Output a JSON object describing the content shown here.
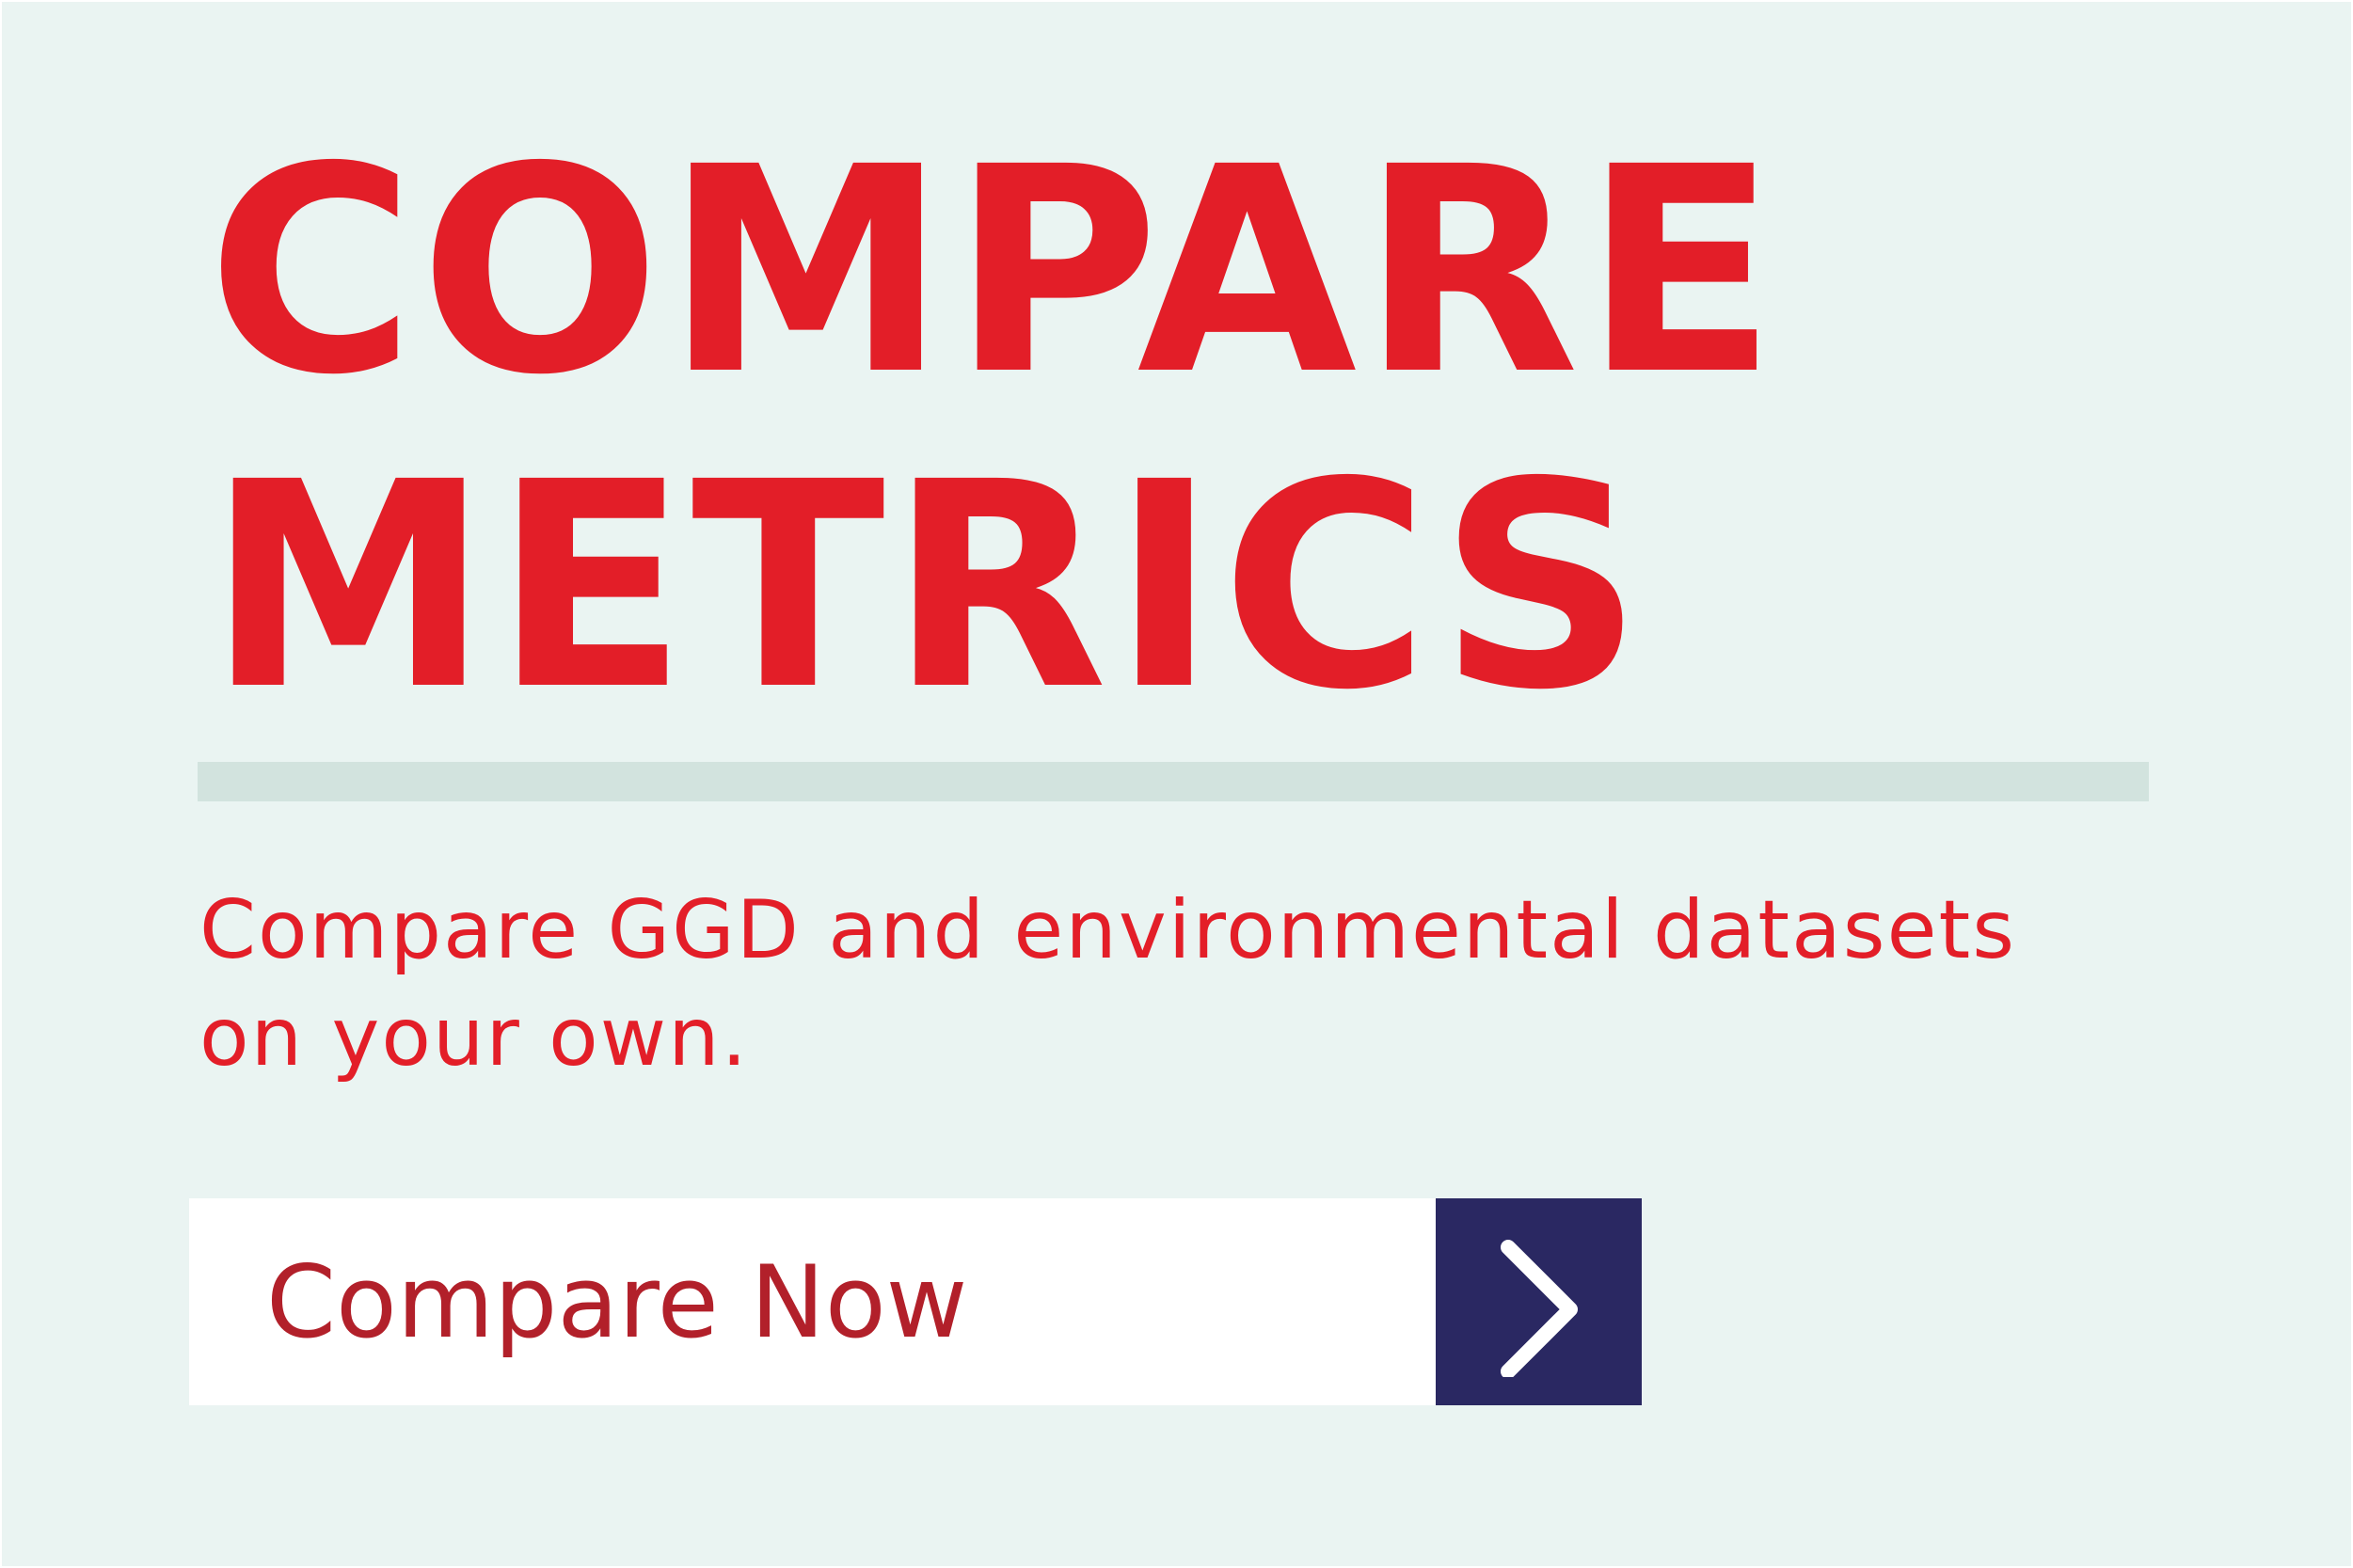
{
  "title": {
    "line1": "COMPARE",
    "line2": "METRICS"
  },
  "description": {
    "line1": "Compare GGD and environmental datasets",
    "line2": "on your own."
  },
  "cta": {
    "label": "Compare Now",
    "icon": "chevron-right-icon"
  },
  "colors": {
    "background": "#eaf4f2",
    "accent_red": "#e31e28",
    "divider": "#d2e3de",
    "button_text": "#b2202a",
    "button_arrow_bg": "#2a2862"
  }
}
